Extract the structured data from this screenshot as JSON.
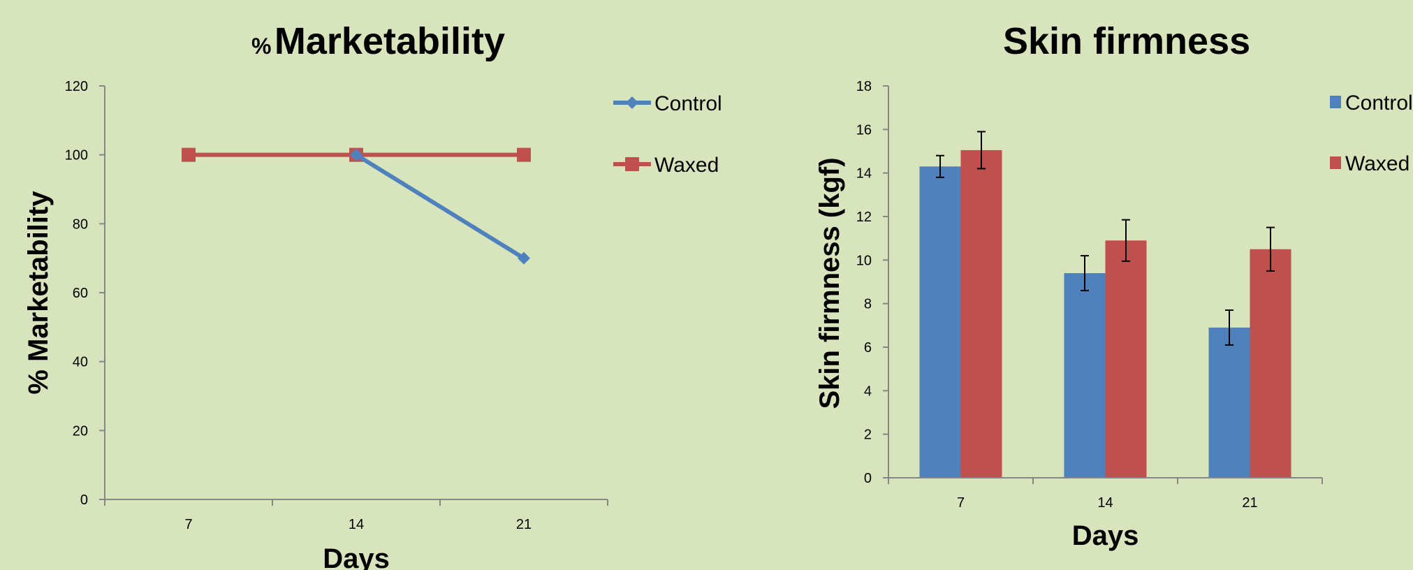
{
  "chart_data": [
    {
      "type": "line",
      "title_prefix": "%",
      "title_main": "Marketability",
      "xlabel": "Days",
      "ylabel": "% Marketability",
      "categories": [
        "7",
        "14",
        "21"
      ],
      "ylim": [
        0,
        120
      ],
      "yticks": [
        "0",
        "20",
        "40",
        "60",
        "80",
        "100",
        "120"
      ],
      "series": [
        {
          "name": "Control",
          "values": [
            null,
            100,
            70
          ],
          "color": "#4f81bd",
          "marker": "diamond"
        },
        {
          "name": "Waxed",
          "values": [
            100,
            100,
            100
          ],
          "color": "#c0504d",
          "marker": "square"
        }
      ],
      "grid": false,
      "legend": "right"
    },
    {
      "type": "bar",
      "title": "Skin firmness",
      "xlabel": "Days",
      "ylabel": "Skin firmness (kgf)",
      "categories": [
        "7",
        "14",
        "21"
      ],
      "ylim": [
        0,
        18
      ],
      "yticks": [
        "0",
        "2",
        "4",
        "6",
        "8",
        "10",
        "12",
        "14",
        "16",
        "18"
      ],
      "series": [
        {
          "name": "Control",
          "values": [
            14.3,
            9.4,
            6.9
          ],
          "errors": [
            0.5,
            0.8,
            0.8
          ],
          "color": "#4f81bd"
        },
        {
          "name": "Waxed",
          "values": [
            15.05,
            10.9,
            10.5
          ],
          "errors": [
            0.85,
            0.95,
            1.0
          ],
          "color": "#c0504d"
        }
      ],
      "grid": false,
      "legend": "right"
    }
  ]
}
